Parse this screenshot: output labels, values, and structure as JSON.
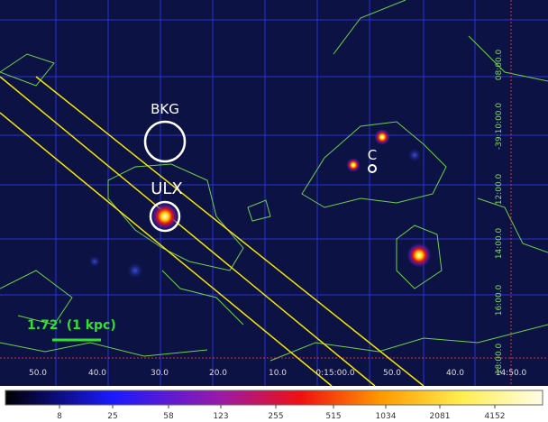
{
  "image": {
    "source_labels": [
      "BKG",
      "ULX",
      "C"
    ],
    "scale_bar": "1.72' (1 kpc)"
  },
  "ra_labels": [
    "50.0",
    "40.0",
    "30.0",
    "20.0",
    "10.0",
    "0:15:00.0",
    "50.0",
    "40.0",
    "14:50.0"
  ],
  "dec_labels": [
    "08:00.0",
    "-39:10:00.0",
    "12:00.0",
    "14:00.0",
    "16:00.0",
    "18:00.0"
  ],
  "colorbar": {
    "ticks": [
      "8",
      "25",
      "58",
      "123",
      "255",
      "515",
      "1034",
      "2081",
      "4152"
    ]
  }
}
